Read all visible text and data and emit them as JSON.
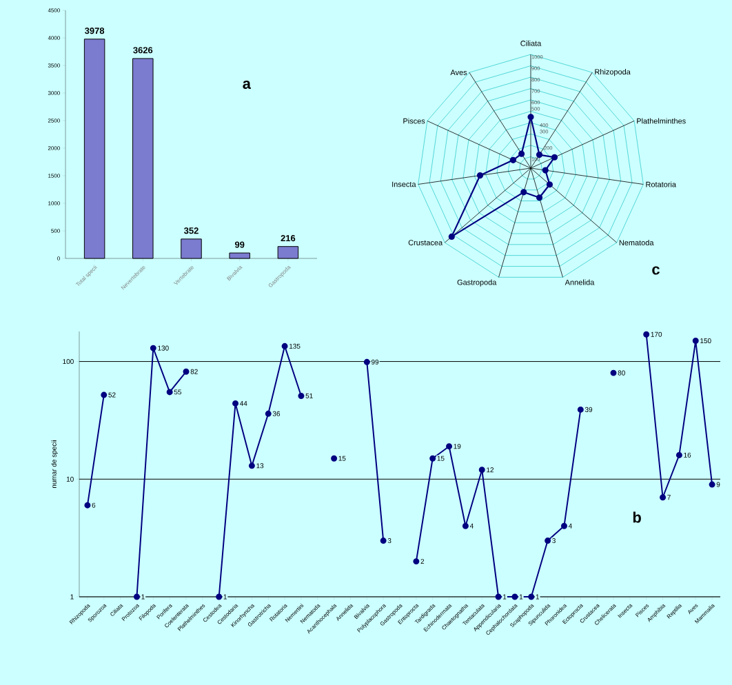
{
  "chart_data": [
    {
      "type": "bar",
      "categories": [
        "Total specii",
        "Nevertebrate",
        "Vertebrate",
        "Bivalvia",
        "Gastropoda"
      ],
      "values": [
        3978,
        3626,
        352,
        99,
        216
      ],
      "color": "#7b7bd0",
      "ylim": [
        0,
        4500
      ],
      "yticks": [
        0,
        500,
        1000,
        1500,
        2000,
        2500,
        3000,
        3500,
        4000,
        4500
      ],
      "data_labels": true,
      "annotations": [
        "a"
      ]
    },
    {
      "type": "radar",
      "categories": [
        "Ciliata",
        "Rhizopoda",
        "Plathelminthes",
        "Rotatoria",
        "Nematoda",
        "Annelida",
        "Gastropoda",
        "Crustacea",
        "Insecta",
        "Pisces",
        "Aves"
      ],
      "series": [
        {
          "color": "#000080",
          "values": [
            450,
            140,
            230,
            130,
            220,
            270,
            220,
            920,
            450,
            170,
            150
          ]
        }
      ],
      "ylim": [
        0,
        1000
      ],
      "yticks": [
        100,
        200,
        300,
        400,
        500,
        600,
        700,
        800,
        900,
        1000
      ],
      "marker": "circle",
      "annotations": [
        "c"
      ]
    },
    {
      "type": "line",
      "categories": [
        "Rhizopoda",
        "Sporozoa",
        "Ciliata",
        "Protozoa",
        "Filopoda",
        "Porifera",
        "Coelenterata",
        "Plathelminthes",
        "Cestodea",
        "Cestodaria",
        "Kinorhyncha",
        "Gastrotricha",
        "Rotatoria",
        "Nemertini",
        "Nematoda",
        "Acanthocephala",
        "Annelida",
        "Bivalvia",
        "Polyplacophora",
        "Gastropoda",
        "Entoprocta",
        "Tardigrada",
        "Echinodermata",
        "Chaetognatha",
        "Tentaculata",
        "Appendicularia",
        "Cephalochordata",
        "Scaphopoda",
        "Sipunculida",
        "Phoronidea",
        "Ectoprocta",
        "Crustacea",
        "Chelicerata",
        "Insecta",
        "Pisces",
        "Amphibia",
        "Reptilia",
        "Aves",
        "Mammalia"
      ],
      "values": [
        6,
        52,
        null,
        1,
        130,
        55,
        82,
        null,
        1,
        44,
        13,
        36,
        135,
        51,
        null,
        15,
        null,
        99,
        3,
        null,
        2,
        15,
        19,
        4,
        12,
        1,
        1,
        1,
        3,
        4,
        39,
        null,
        80,
        null,
        170,
        7,
        16,
        150,
        9
      ],
      "color": "#000080",
      "ylabel": "numar de specii",
      "log": true,
      "ylim": [
        1,
        180
      ],
      "yticks": [
        1,
        10,
        100
      ],
      "grid": "y",
      "marker": "circle",
      "data_labels": true,
      "annotations": [
        "b"
      ]
    }
  ]
}
